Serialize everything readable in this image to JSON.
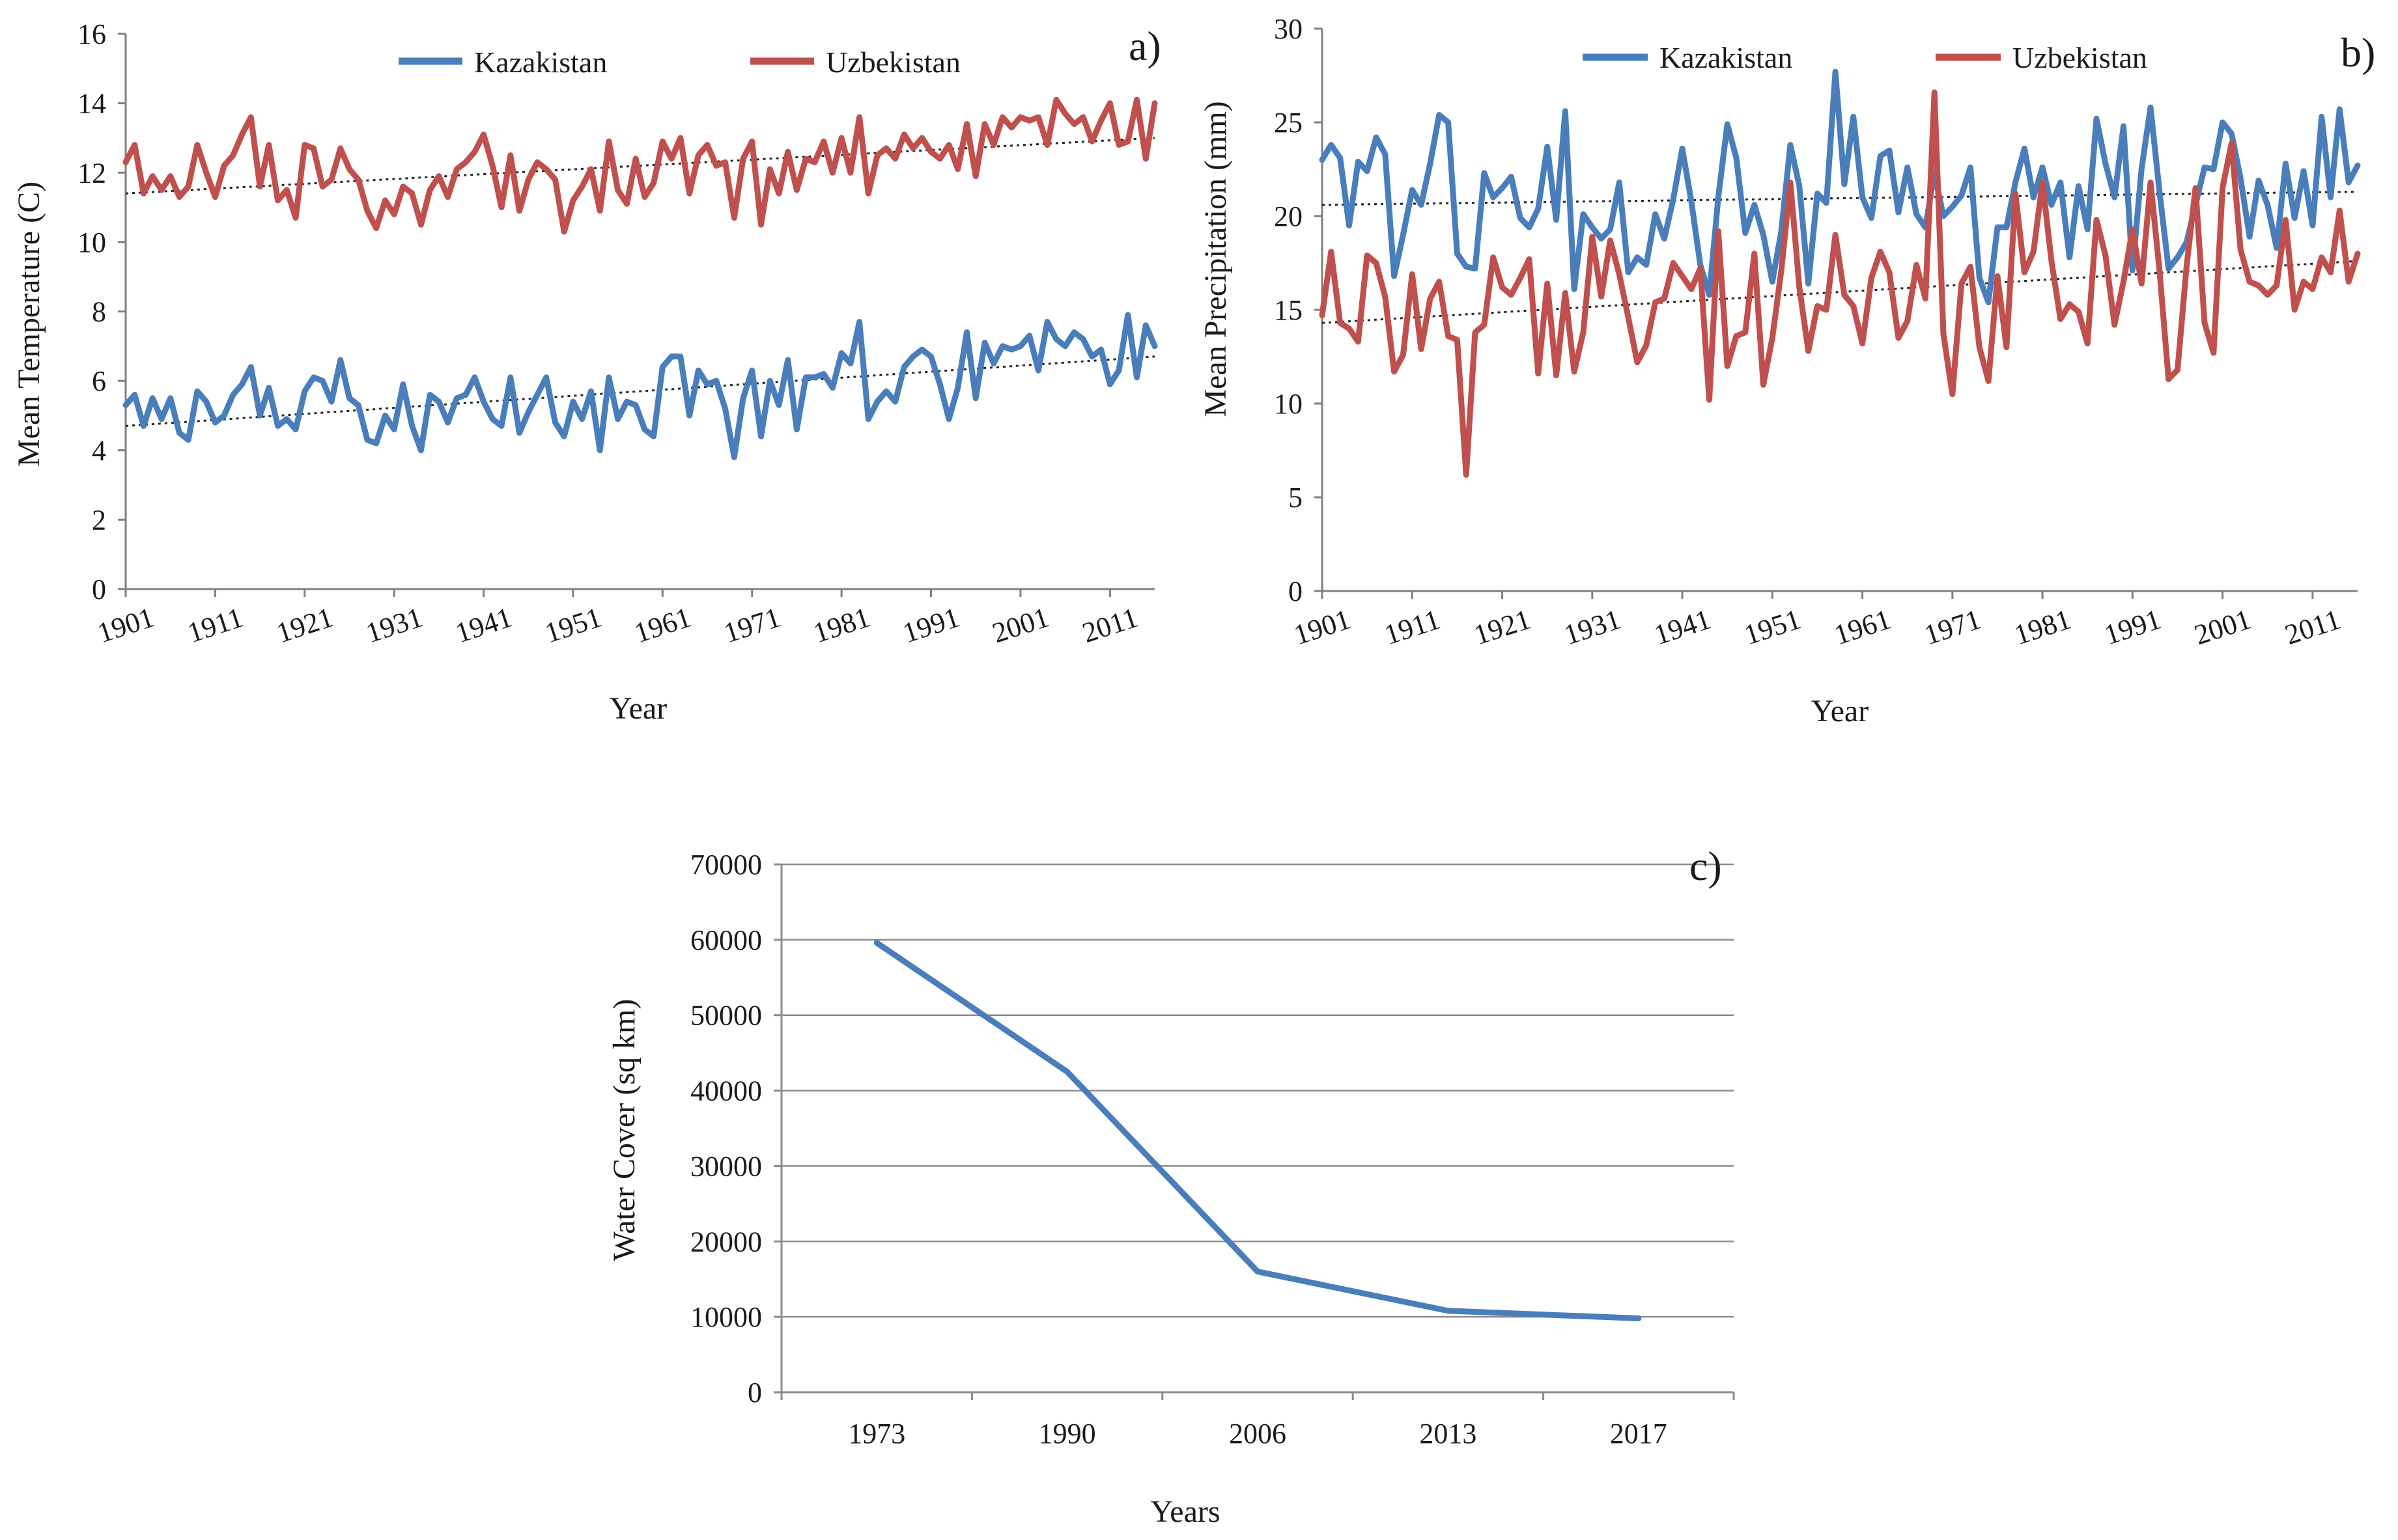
{
  "chart_data": [
    {
      "id": "a",
      "type": "line",
      "panel_label": "a)",
      "xlabel": "Year",
      "ylabel": "Mean Temperature (C)",
      "ylim": [
        0,
        16
      ],
      "yticks": [
        0,
        2,
        4,
        6,
        8,
        10,
        12,
        14,
        16
      ],
      "x_start": 1901,
      "x_end": 2016,
      "xtick_labels": [
        "1901",
        "1911",
        "1921",
        "1931",
        "1941",
        "1951",
        "1961",
        "1971",
        "1981",
        "1991",
        "2001",
        "2011"
      ],
      "legend_position": "top",
      "series": [
        {
          "name": "Kazakistan",
          "color": "#4a7ebb",
          "trend": [
            4.7,
            6.7
          ],
          "values": [
            5.3,
            5.6,
            4.7,
            5.5,
            4.9,
            5.5,
            4.5,
            4.3,
            5.7,
            5.4,
            4.8,
            5.0,
            5.6,
            5.9,
            6.4,
            5.0,
            5.8,
            4.7,
            4.9,
            4.6,
            5.7,
            6.1,
            6.0,
            5.4,
            6.6,
            5.5,
            5.3,
            4.3,
            4.2,
            5.0,
            4.6,
            5.9,
            4.7,
            4.0,
            5.6,
            5.4,
            4.8,
            5.5,
            5.6,
            6.1,
            5.4,
            4.9,
            4.7,
            6.1,
            4.5,
            5.1,
            5.6,
            6.1,
            4.8,
            4.4,
            5.4,
            4.9,
            5.7,
            4.0,
            6.1,
            4.9,
            5.4,
            5.3,
            4.6,
            4.4,
            6.4,
            6.7,
            6.7,
            5.0,
            6.3,
            5.9,
            6.0,
            5.2,
            3.8,
            5.5,
            6.3,
            4.4,
            6.0,
            5.3,
            6.6,
            4.6,
            6.1,
            6.1,
            6.2,
            5.8,
            6.8,
            6.5,
            7.7,
            4.9,
            5.4,
            5.7,
            5.4,
            6.4,
            6.7,
            6.9,
            6.7,
            5.9,
            4.9,
            5.8,
            7.4,
            5.5,
            7.1,
            6.5,
            7.0,
            6.9,
            7.0,
            7.3,
            6.3,
            7.7,
            7.2,
            7.0,
            7.4,
            7.2,
            6.7,
            6.9,
            5.9,
            6.3,
            7.9,
            6.1,
            7.6,
            7.0
          ]
        },
        {
          "name": "Uzbekistan",
          "color": "#c0504d",
          "trend": [
            11.4,
            13.0
          ],
          "values": [
            12.3,
            12.8,
            11.4,
            11.9,
            11.5,
            11.9,
            11.3,
            11.6,
            12.8,
            12.0,
            11.3,
            12.2,
            12.5,
            13.1,
            13.6,
            11.6,
            12.8,
            11.2,
            11.5,
            10.7,
            12.8,
            12.7,
            11.6,
            11.8,
            12.7,
            12.1,
            11.8,
            10.9,
            10.4,
            11.2,
            10.8,
            11.6,
            11.4,
            10.5,
            11.5,
            11.9,
            11.3,
            12.1,
            12.3,
            12.6,
            13.1,
            12.2,
            11.0,
            12.5,
            10.9,
            11.8,
            12.3,
            12.1,
            11.8,
            10.3,
            11.2,
            11.6,
            12.1,
            10.9,
            12.9,
            11.5,
            11.1,
            12.4,
            11.3,
            11.7,
            12.9,
            12.4,
            13.0,
            11.4,
            12.5,
            12.8,
            12.2,
            12.3,
            10.7,
            12.4,
            12.9,
            10.5,
            12.1,
            11.4,
            12.6,
            11.5,
            12.4,
            12.3,
            12.9,
            12.0,
            13.0,
            12.0,
            13.6,
            11.4,
            12.5,
            12.7,
            12.4,
            13.1,
            12.7,
            13.0,
            12.6,
            12.4,
            12.8,
            12.1,
            13.4,
            11.9,
            13.4,
            12.8,
            13.6,
            13.3,
            13.6,
            13.5,
            13.6,
            12.8,
            14.1,
            13.7,
            13.4,
            13.6,
            12.9,
            13.5,
            14.0,
            12.8,
            12.9,
            14.1,
            12.4,
            14.0
          ]
        }
      ]
    },
    {
      "id": "b",
      "type": "line",
      "panel_label": "b)",
      "xlabel": "Year",
      "ylabel": "Mean Precipitation (mm)",
      "ylim": [
        0,
        30
      ],
      "yticks": [
        0,
        5,
        10,
        15,
        20,
        25,
        30
      ],
      "x_start": 1901,
      "x_end": 2016,
      "xtick_labels": [
        "1901",
        "1911",
        "1921",
        "1931",
        "1941",
        "1951",
        "1961",
        "1971",
        "1981",
        "1991",
        "2001",
        "2011"
      ],
      "legend_position": "top",
      "series": [
        {
          "name": "Kazakistan",
          "color": "#4a7ebb",
          "trend": [
            20.6,
            21.3
          ],
          "values": [
            23.0,
            23.8,
            23.1,
            19.5,
            22.9,
            22.4,
            24.2,
            23.3,
            16.8,
            19.0,
            21.4,
            20.6,
            22.8,
            25.4,
            25.0,
            18.0,
            17.3,
            17.2,
            22.3,
            21.0,
            21.5,
            22.1,
            19.9,
            19.4,
            20.4,
            23.7,
            19.8,
            25.6,
            16.1,
            20.1,
            19.4,
            18.8,
            19.3,
            21.8,
            17.0,
            17.8,
            17.4,
            20.1,
            18.8,
            20.9,
            23.6,
            20.8,
            17.4,
            15.8,
            21.0,
            24.9,
            23.1,
            19.1,
            20.6,
            19.0,
            16.5,
            19.2,
            23.8,
            21.6,
            16.4,
            21.2,
            20.7,
            27.7,
            21.7,
            25.3,
            21.0,
            19.9,
            23.2,
            23.5,
            20.2,
            22.6,
            20.1,
            19.4,
            22.3,
            20.0,
            20.5,
            21.1,
            22.6,
            16.7,
            15.4,
            19.4,
            19.4,
            21.8,
            23.6,
            21.0,
            22.6,
            20.6,
            21.8,
            17.8,
            21.6,
            19.3,
            25.2,
            22.8,
            21.0,
            24.8,
            17.1,
            22.5,
            25.8,
            21.3,
            17.2,
            17.8,
            18.6,
            20.6,
            22.6,
            22.5,
            25.0,
            24.4,
            22.0,
            18.9,
            21.9,
            20.6,
            18.3,
            22.8,
            19.9,
            22.4,
            19.5,
            25.3,
            21.0,
            25.7,
            21.8,
            22.7
          ]
        },
        {
          "name": "Uzbekistan",
          "color": "#c0504d",
          "trend": [
            14.3,
            17.6
          ],
          "values": [
            14.7,
            18.1,
            14.3,
            14.0,
            13.3,
            17.9,
            17.5,
            15.7,
            11.7,
            12.6,
            16.9,
            12.9,
            15.6,
            16.5,
            13.6,
            13.4,
            6.2,
            13.8,
            14.2,
            17.8,
            16.2,
            15.8,
            16.7,
            17.7,
            11.6,
            16.4,
            11.5,
            15.9,
            11.7,
            13.8,
            18.9,
            15.7,
            18.7,
            16.9,
            14.6,
            12.2,
            13.1,
            15.4,
            15.6,
            17.5,
            16.8,
            16.1,
            17.2,
            10.2,
            19.2,
            12.0,
            13.6,
            13.8,
            18.0,
            11.0,
            13.5,
            17.1,
            21.8,
            16.2,
            12.8,
            15.2,
            15.0,
            19.0,
            15.8,
            15.2,
            13.2,
            16.7,
            18.1,
            17.0,
            13.5,
            14.4,
            17.4,
            15.6,
            26.6,
            13.7,
            10.5,
            16.4,
            17.3,
            13.0,
            11.2,
            16.8,
            13.0,
            21.2,
            17.0,
            18.1,
            21.8,
            17.6,
            14.5,
            15.3,
            14.9,
            13.2,
            19.8,
            17.9,
            14.2,
            16.5,
            19.3,
            16.4,
            21.8,
            17.1,
            11.3,
            11.8,
            17.3,
            21.5,
            14.3,
            12.7,
            21.5,
            23.9,
            18.2,
            16.5,
            16.3,
            15.8,
            16.3,
            19.8,
            15.0,
            16.5,
            16.1,
            17.8,
            17.0,
            20.3,
            16.5,
            18.0
          ]
        }
      ]
    },
    {
      "id": "c",
      "type": "line",
      "panel_label": "c)",
      "xlabel": "Years",
      "ylabel": "Water Cover (sq km)",
      "ylim": [
        0,
        70000
      ],
      "yticks": [
        0,
        10000,
        20000,
        30000,
        40000,
        50000,
        60000,
        70000
      ],
      "categories": [
        "1973",
        "1990",
        "2006",
        "2013",
        "2017"
      ],
      "gridlines": true,
      "series": [
        {
          "name": "Water Cover",
          "color": "#4a7ebb",
          "values": [
            59600,
            42500,
            16000,
            10800,
            9800
          ]
        }
      ]
    }
  ]
}
